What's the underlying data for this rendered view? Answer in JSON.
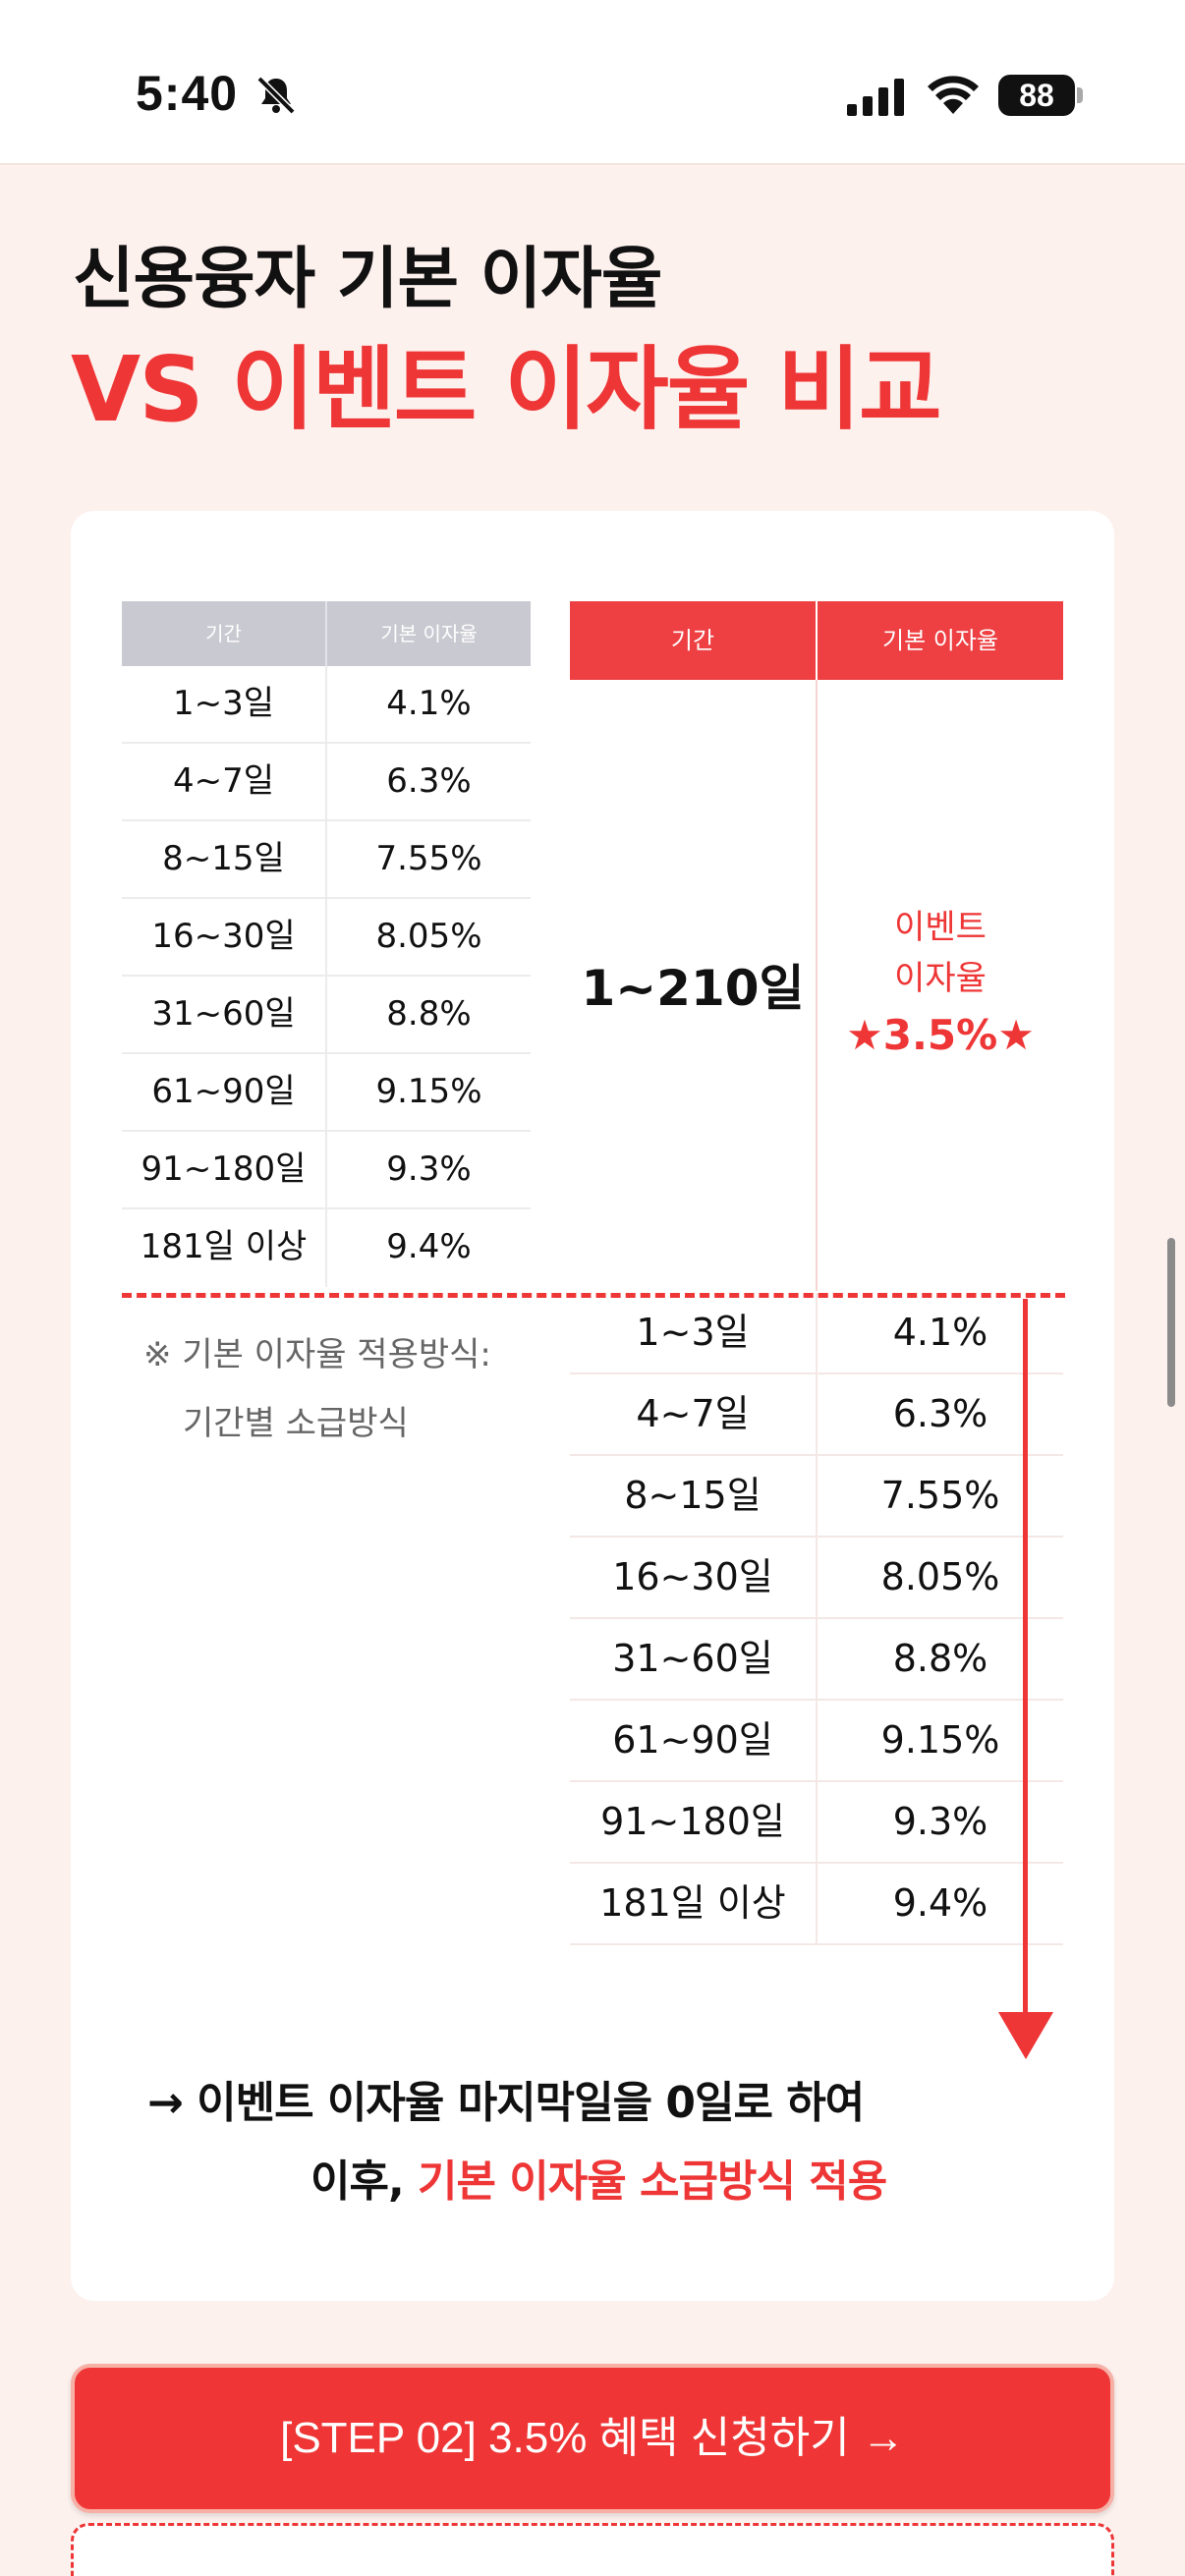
{
  "status_bar": {
    "time": "5:40",
    "battery": "88",
    "icons": [
      "bell-slash-icon",
      "cellular-signal-icon",
      "wifi-icon",
      "battery-icon"
    ]
  },
  "heading": {
    "line1": "신용융자 기본 이자율",
    "line2": "VS 이벤트 이자율 비교"
  },
  "base_table": {
    "headers": [
      "기간",
      "기본 이자율"
    ],
    "rows": [
      [
        "1~3일",
        "4.1%"
      ],
      [
        "4~7일",
        "6.3%"
      ],
      [
        "8~15일",
        "7.55%"
      ],
      [
        "16~30일",
        "8.05%"
      ],
      [
        "31~60일",
        "8.8%"
      ],
      [
        "61~90일",
        "9.15%"
      ],
      [
        "91~180일",
        "9.3%"
      ],
      [
        "181일 이상",
        "9.4%"
      ]
    ]
  },
  "event_table": {
    "headers": [
      "기간",
      "기본 이자율"
    ],
    "period": "1~210일",
    "event_label_1": "이벤트",
    "event_label_2": "이자율",
    "event_rate": "★3.5%★",
    "rows": [
      [
        "1~3일",
        "4.1%"
      ],
      [
        "4~7일",
        "6.3%"
      ],
      [
        "8~15일",
        "7.55%"
      ],
      [
        "16~30일",
        "8.05%"
      ],
      [
        "31~60일",
        "8.8%"
      ],
      [
        "61~90일",
        "9.15%"
      ],
      [
        "91~180일",
        "9.3%"
      ],
      [
        "181일 이상",
        "9.4%"
      ]
    ]
  },
  "note": {
    "line1": "※ 기본 이자율 적용방식:",
    "line2": "기간별 소급방식"
  },
  "summary": {
    "line1": "→ 이벤트 이자율 마지막일을 0일로 하여",
    "line2_prefix": "이후, ",
    "line2_highlight": "기본 이자율 소급방식 적용"
  },
  "cta": {
    "label": "[STEP 02] 3.5% 혜택 신청하기 →"
  },
  "colors": {
    "accent": "#ee3636",
    "background": "#fdf1ee",
    "base_header": "#c9c9d1"
  }
}
